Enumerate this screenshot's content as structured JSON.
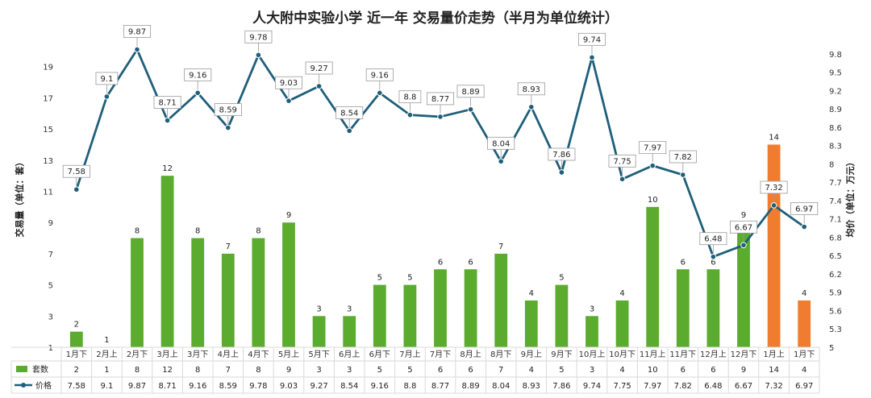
{
  "chart_data": {
    "type": "bar",
    "title": "人大附中实验小学 近一年 交易量价走势（半月为单位统计）",
    "ylabel_left": "交易量（单位：套）",
    "ylabel_right": "均价（单位：万元）",
    "ylim_left": [
      1,
      21
    ],
    "ylim_right": [
      5,
      10.1
    ],
    "yticks_left": [
      1,
      3,
      5,
      7,
      9,
      11,
      13,
      15,
      17,
      19
    ],
    "yticks_right": [
      5,
      5.3,
      5.6,
      5.9,
      6.2,
      6.5,
      6.8,
      7.1,
      7.4,
      7.7,
      8,
      8.3,
      8.6,
      8.9,
      9.2,
      9.5,
      9.8
    ],
    "categories": [
      "1月下",
      "2月上",
      "2月下",
      "3月上",
      "3月下",
      "4月上",
      "4月下",
      "5月上",
      "5月下",
      "6月上",
      "6月下",
      "7月上",
      "7月下",
      "8月上",
      "8月下",
      "9月上",
      "9月下",
      "10月上",
      "10月下",
      "11月上",
      "11月下",
      "12月上",
      "12月下",
      "1月上",
      "1月下"
    ],
    "series": [
      {
        "name": "套数",
        "type": "bar",
        "axis": "left",
        "values": [
          2,
          1,
          8,
          12,
          8,
          7,
          8,
          9,
          3,
          3,
          5,
          5,
          6,
          6,
          7,
          4,
          5,
          3,
          4,
          10,
          6,
          6,
          9,
          14,
          4
        ]
      },
      {
        "name": "价格",
        "type": "line",
        "axis": "right",
        "values": [
          7.58,
          9.1,
          9.87,
          8.71,
          9.16,
          8.59,
          9.78,
          9.03,
          9.27,
          8.54,
          9.16,
          8.8,
          8.77,
          8.89,
          8.04,
          8.93,
          7.86,
          9.74,
          7.75,
          7.97,
          7.82,
          6.48,
          6.67,
          7.32,
          6.97
        ]
      }
    ],
    "colors": {
      "bar": "#5aab2e",
      "bar_highlight": "#f07d2f",
      "line": "#1f5f7a",
      "grid": "#d9d9d9"
    },
    "highlight_indices": [
      23,
      24
    ],
    "grid": false,
    "legend": "table-bottom"
  }
}
